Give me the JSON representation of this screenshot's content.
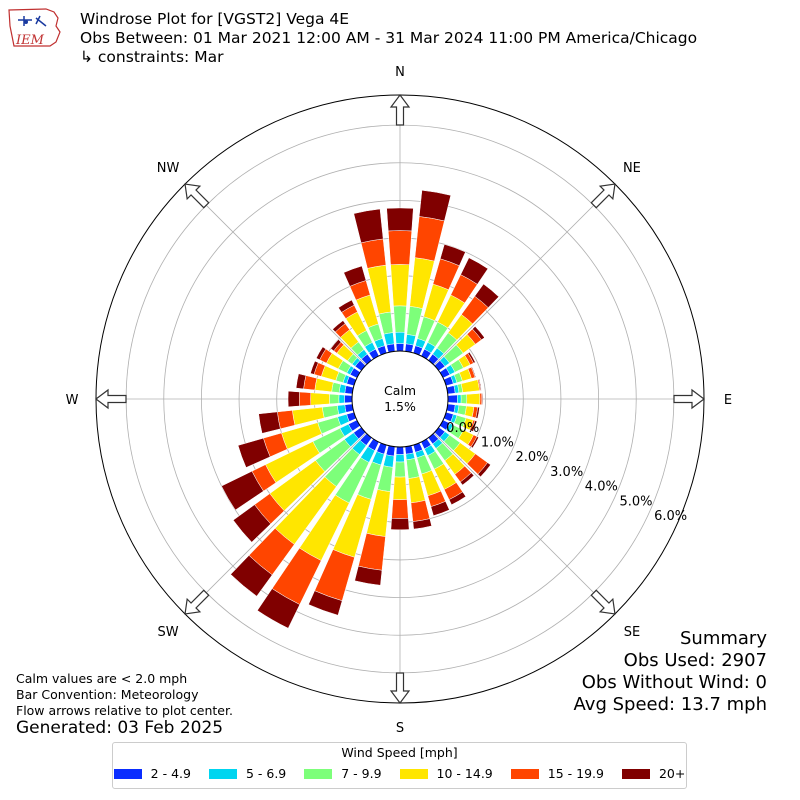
{
  "header": {
    "title": "Windrose Plot for [VGST2] Vega 4E",
    "subtitle": "Obs Between: 01 Mar 2021 12:00 AM - 31 Mar 2024 11:00 PM America/Chicago",
    "constraints": "↳ constraints: Mar",
    "logo_text": "IEM"
  },
  "notes": {
    "calm_note": "Calm values are < 2.0 mph",
    "bar_convention": "Bar Convention: Meteorology",
    "flow_note": "Flow arrows relative to plot center.",
    "generated": "Generated: 03 Feb 2025"
  },
  "summary": {
    "heading": "Summary",
    "obs_used": "Obs Used: 2907",
    "obs_without_wind": "Obs Without Wind: 0",
    "avg_speed": "Avg Speed: 13.7 mph"
  },
  "chart_data": {
    "type": "windrose",
    "calm_label": "Calm",
    "calm_value": "1.5%",
    "radial_tick_labels": [
      "0.0%",
      "1.0%",
      "2.0%",
      "3.0%",
      "4.0%",
      "5.0%",
      "6.0%"
    ],
    "radial_max": 6.8,
    "direction_labels": [
      "N",
      "NE",
      "E",
      "SE",
      "S",
      "SW",
      "W",
      "NW"
    ],
    "legend_title": "Wind Speed [mph]",
    "bins": [
      "2 - 4.9",
      "5 - 6.9",
      "7 - 9.9",
      "10 - 14.9",
      "15 - 19.9",
      "20+"
    ],
    "colors": [
      "#0a2dff",
      "#00d5f0",
      "#7dff7a",
      "#ffe600",
      "#ff4500",
      "#800000"
    ],
    "directions_deg": [
      0,
      10,
      20,
      30,
      40,
      50,
      60,
      70,
      80,
      90,
      100,
      110,
      120,
      130,
      140,
      150,
      160,
      170,
      180,
      190,
      200,
      210,
      220,
      230,
      240,
      250,
      260,
      270,
      280,
      290,
      300,
      310,
      320,
      330,
      340,
      350
    ],
    "cumulative": [
      [
        0.2,
        0.5,
        1.2,
        2.3,
        3.2,
        3.8
      ],
      [
        0.2,
        0.45,
        1.2,
        2.5,
        3.6,
        4.3
      ],
      [
        0.2,
        0.4,
        1.0,
        1.9,
        2.6,
        3.0
      ],
      [
        0.2,
        0.4,
        1.0,
        1.8,
        2.4,
        2.9
      ],
      [
        0.2,
        0.4,
        0.9,
        1.5,
        2.1,
        2.5
      ],
      [
        0.2,
        0.35,
        0.8,
        1.2,
        1.4,
        1.5
      ],
      [
        0.2,
        0.35,
        0.6,
        0.8,
        0.9,
        0.95
      ],
      [
        0.2,
        0.3,
        0.45,
        0.7,
        0.8,
        0.82
      ],
      [
        0.2,
        0.3,
        0.4,
        0.85,
        0.88,
        0.9
      ],
      [
        0.25,
        0.35,
        0.5,
        0.85,
        0.9,
        0.92
      ],
      [
        0.2,
        0.3,
        0.5,
        0.7,
        0.8,
        0.85
      ],
      [
        0.2,
        0.3,
        0.55,
        0.75,
        0.8,
        0.85
      ],
      [
        0.2,
        0.3,
        0.6,
        0.9,
        1.0,
        1.05
      ],
      [
        0.2,
        0.35,
        0.7,
        1.2,
        1.6,
        1.7
      ],
      [
        0.2,
        0.35,
        0.75,
        1.2,
        1.45,
        1.55
      ],
      [
        0.2,
        0.4,
        0.8,
        1.4,
        1.7,
        1.85
      ],
      [
        0.2,
        0.35,
        0.8,
        1.4,
        1.7,
        1.95
      ],
      [
        0.2,
        0.35,
        0.85,
        1.5,
        2.0,
        2.2
      ],
      [
        0.2,
        0.4,
        0.8,
        1.4,
        1.9,
        2.2
      ],
      [
        0.25,
        0.55,
        1.2,
        2.4,
        3.3,
        3.7
      ],
      [
        0.25,
        0.55,
        1.5,
        3.1,
        4.3,
        4.7
      ],
      [
        0.25,
        0.6,
        1.8,
        3.5,
        4.8,
        5.5
      ],
      [
        0.25,
        0.55,
        1.6,
        3.5,
        4.5,
        5.2
      ],
      [
        0.25,
        0.55,
        1.5,
        3.0,
        3.5,
        4.2
      ],
      [
        0.25,
        0.5,
        1.3,
        2.7,
        3.1,
        4.0
      ],
      [
        0.2,
        0.45,
        1.0,
        2.0,
        2.5,
        3.2
      ],
      [
        0.2,
        0.4,
        0.8,
        1.6,
        2.0,
        2.5
      ],
      [
        0.2,
        0.35,
        0.6,
        1.1,
        1.4,
        1.7
      ],
      [
        0.2,
        0.35,
        0.55,
        1.0,
        1.3,
        1.5
      ],
      [
        0.2,
        0.3,
        0.5,
        0.9,
        1.1,
        1.2
      ],
      [
        0.2,
        0.3,
        0.55,
        0.9,
        1.1,
        1.2
      ],
      [
        0.2,
        0.3,
        0.45,
        0.8,
        0.9,
        1.0
      ],
      [
        0.2,
        0.35,
        0.6,
        1.0,
        1.2,
        1.3
      ],
      [
        0.2,
        0.4,
        0.75,
        1.3,
        1.5,
        1.65
      ],
      [
        0.2,
        0.4,
        0.8,
        1.6,
        2.0,
        2.4
      ],
      [
        0.2,
        0.5,
        1.05,
        2.3,
        3.0,
        3.8
      ]
    ]
  }
}
